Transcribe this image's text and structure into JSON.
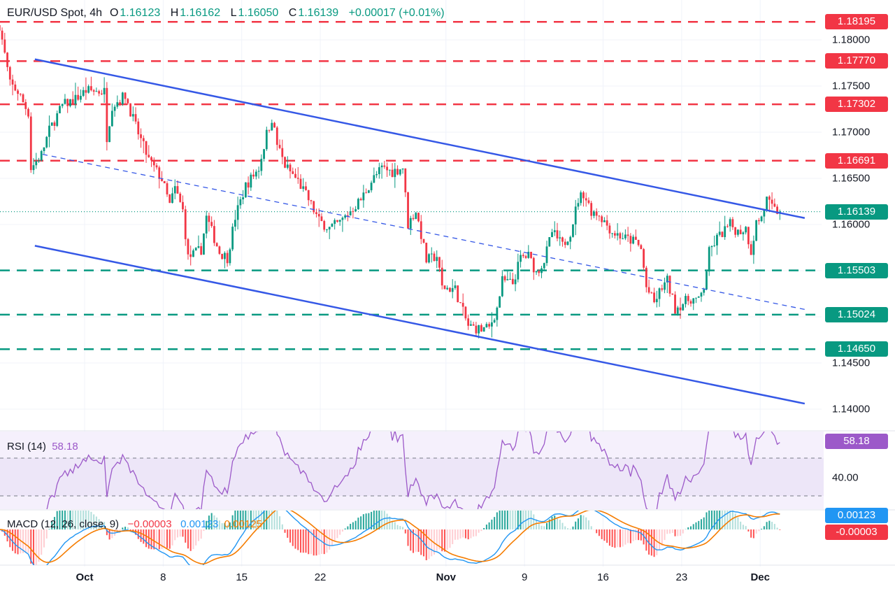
{
  "header": {
    "symbol": "EUR/USD Spot, 4h",
    "o_label": "O",
    "o": "1.16123",
    "h_label": "H",
    "h": "1.16162",
    "l_label": "L",
    "l": "1.16050",
    "c_label": "C",
    "c": "1.16139",
    "change": "+0.00017 (+0.01%)"
  },
  "colors": {
    "up": "#089981",
    "down": "#f23645",
    "trend": "#3558e6",
    "rsi": "#9c59c9",
    "macd": "#2196f3",
    "signal": "#f57c00"
  },
  "price_axis": {
    "ticks": [
      "1.18000",
      "1.17500",
      "1.17000",
      "1.16500",
      "1.16000",
      "1.14500",
      "1.14000"
    ]
  },
  "levels": {
    "resistance": [
      "1.18195",
      "1.17770",
      "1.17302",
      "1.16691"
    ],
    "support": [
      "1.15503",
      "1.15024",
      "1.14650"
    ],
    "current": "1.16139"
  },
  "x_axis": {
    "labels": [
      {
        "text": "Oct",
        "date": "10-01",
        "bold": true
      },
      {
        "text": "8",
        "date": "10-08"
      },
      {
        "text": "15",
        "date": "10-15"
      },
      {
        "text": "22",
        "date": "10-22"
      },
      {
        "text": "Nov",
        "date": "11-03",
        "bold": true
      },
      {
        "text": "9",
        "date": "11-10"
      },
      {
        "text": "16",
        "date": "11-17"
      },
      {
        "text": "23",
        "date": "11-24"
      },
      {
        "text": "Dec",
        "date": "12-01",
        "bold": true
      }
    ]
  },
  "rsi": {
    "label": "RSI (14)",
    "value": "58.18",
    "axis_label": "40.00"
  },
  "macd": {
    "label": "MACD (12, 26, close, 9)",
    "histogram": "−0.00003",
    "macd": "0.00123",
    "signal": "0.00125",
    "tag_macd": "0.00123",
    "tag_hist": "-0.00003"
  },
  "chart_data": {
    "type": "candlestick",
    "symbol": "EUR/USD",
    "timeframe": "4h",
    "ylim": [
      1.1375,
      1.1835
    ],
    "last_candle": {
      "open": 1.16123,
      "high": 1.16162,
      "low": 1.1605,
      "close": 1.16139
    },
    "close_path": [
      [
        "09-23 16",
        1.1816
      ],
      [
        "09-24 08",
        1.1752
      ],
      [
        "09-24 20",
        1.1744
      ],
      [
        "09-25 12",
        1.1721
      ],
      [
        "09-25 16",
        1.1661
      ],
      [
        "09-26 08",
        1.1676
      ],
      [
        "09-26 20",
        1.1702
      ],
      [
        "09-29 16",
        1.1729
      ],
      [
        "09-30 12",
        1.1736
      ],
      [
        "10-01 04",
        1.1745
      ],
      [
        "10-02 08",
        1.1744
      ],
      [
        "10-02 12",
        1.1695
      ],
      [
        "10-02 20",
        1.1729
      ],
      [
        "10-03 16",
        1.174
      ],
      [
        "10-06 08",
        1.1706
      ],
      [
        "10-07 04",
        1.167
      ],
      [
        "10-08 00",
        1.1649
      ],
      [
        "10-08 12",
        1.1621
      ],
      [
        "10-08 20",
        1.1639
      ],
      [
        "10-09 08",
        1.1615
      ],
      [
        "10-09 16",
        1.1564
      ],
      [
        "10-10 12",
        1.1573
      ],
      [
        "10-10 20",
        1.1608
      ],
      [
        "10-13 16",
        1.157
      ],
      [
        "10-14 04",
        1.1564
      ],
      [
        "10-14 16",
        1.1608
      ],
      [
        "10-15 08",
        1.1642
      ],
      [
        "10-16 04",
        1.1661
      ],
      [
        "10-16 16",
        1.1698
      ],
      [
        "10-17 00",
        1.1715
      ],
      [
        "10-17 08",
        1.1687
      ],
      [
        "10-17 20",
        1.1664
      ],
      [
        "10-20 16",
        1.1647
      ],
      [
        "10-21 08",
        1.1627
      ],
      [
        "10-22 00",
        1.1604
      ],
      [
        "10-22 16",
        1.1596
      ],
      [
        "10-23 08",
        1.1602
      ],
      [
        "10-24 00",
        1.1615
      ],
      [
        "10-24 16",
        1.1627
      ],
      [
        "10-27 08",
        1.1647
      ],
      [
        "10-28 00",
        1.1661
      ],
      [
        "10-28 16",
        1.1657
      ],
      [
        "10-29 08",
        1.1662
      ],
      [
        "10-29 16",
        1.16
      ],
      [
        "10-30 04",
        1.1615
      ],
      [
        "10-30 12",
        1.1589
      ],
      [
        "10-30 20",
        1.1561
      ],
      [
        "10-31 12",
        1.1566
      ],
      [
        "10-31 20",
        1.1532
      ],
      [
        "11-03 16",
        1.153
      ],
      [
        "11-04 00",
        1.1513
      ],
      [
        "11-04 12",
        1.149
      ],
      [
        "11-05 08",
        1.1486
      ],
      [
        "11-05 20",
        1.1488
      ],
      [
        "11-06 08",
        1.1509
      ],
      [
        "11-06 16",
        1.1539
      ],
      [
        "11-07 08",
        1.1536
      ],
      [
        "11-07 20",
        1.1564
      ],
      [
        "11-10 08",
        1.1566
      ],
      [
        "11-10 20",
        1.1548
      ],
      [
        "11-11 08",
        1.1561
      ],
      [
        "11-11 20",
        1.1592
      ],
      [
        "11-12 12",
        1.1577
      ],
      [
        "11-13 00",
        1.1592
      ],
      [
        "11-13 12",
        1.1627
      ],
      [
        "11-13 20",
        1.1634
      ],
      [
        "11-14 08",
        1.1615
      ],
      [
        "11-14 20",
        1.1611
      ],
      [
        "11-17 16",
        1.1592
      ],
      [
        "11-18 12",
        1.1585
      ],
      [
        "11-19 04",
        1.1581
      ],
      [
        "11-19 12",
        1.1573
      ],
      [
        "11-19 20",
        1.1532
      ],
      [
        "11-20 08",
        1.1515
      ],
      [
        "11-20 20",
        1.1532
      ],
      [
        "11-21 04",
        1.1539
      ],
      [
        "11-21 16",
        1.1509
      ],
      [
        "11-24 04",
        1.1515
      ],
      [
        "11-24 16",
        1.152
      ],
      [
        "11-25 04",
        1.1517
      ],
      [
        "11-25 12",
        1.1532
      ],
      [
        "11-25 20",
        1.157
      ],
      [
        "11-26 08",
        1.1585
      ],
      [
        "11-27 04",
        1.16
      ],
      [
        "11-27 16",
        1.1592
      ],
      [
        "11-28 04",
        1.1596
      ],
      [
        "11-28 12",
        1.1571
      ],
      [
        "11-28 20",
        1.1602
      ],
      [
        "12-01 04",
        1.1608
      ],
      [
        "12-01 12",
        1.1627
      ],
      [
        "12-01 20",
        1.1617
      ],
      [
        "12-02 04",
        1.16139
      ]
    ],
    "trendlines": [
      {
        "style": "solid",
        "from": [
          "09-25 20",
          1.1779
        ],
        "to": [
          "12-03 20",
          1.1607
        ]
      },
      {
        "style": "solid",
        "from": [
          "09-25 20",
          1.1577
        ],
        "to": [
          "12-03 20",
          1.1406
        ]
      },
      {
        "style": "dashed",
        "from": [
          "09-26 08",
          1.1676
        ],
        "to": [
          "12-03 20",
          1.1508
        ]
      }
    ]
  }
}
